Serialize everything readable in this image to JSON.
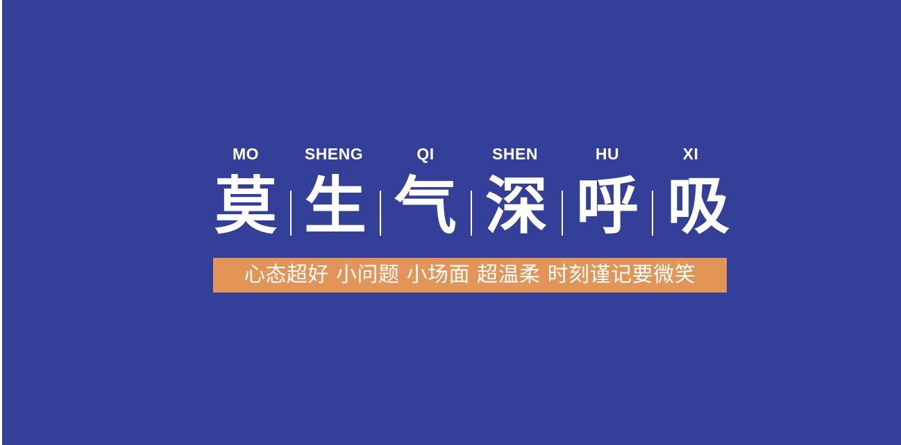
{
  "colors": {
    "background": "#333f98",
    "text": "#ffffff",
    "banner": "#e39557"
  },
  "headline": {
    "pinyin": [
      "MO",
      "SHENG",
      "QI",
      "SHEN",
      "HU",
      "XI"
    ],
    "characters": [
      "莫",
      "生",
      "气",
      "深",
      "呼",
      "吸"
    ]
  },
  "slogan": "心态超好 小问题 小场面 超温柔 时刻谨记要微笑"
}
